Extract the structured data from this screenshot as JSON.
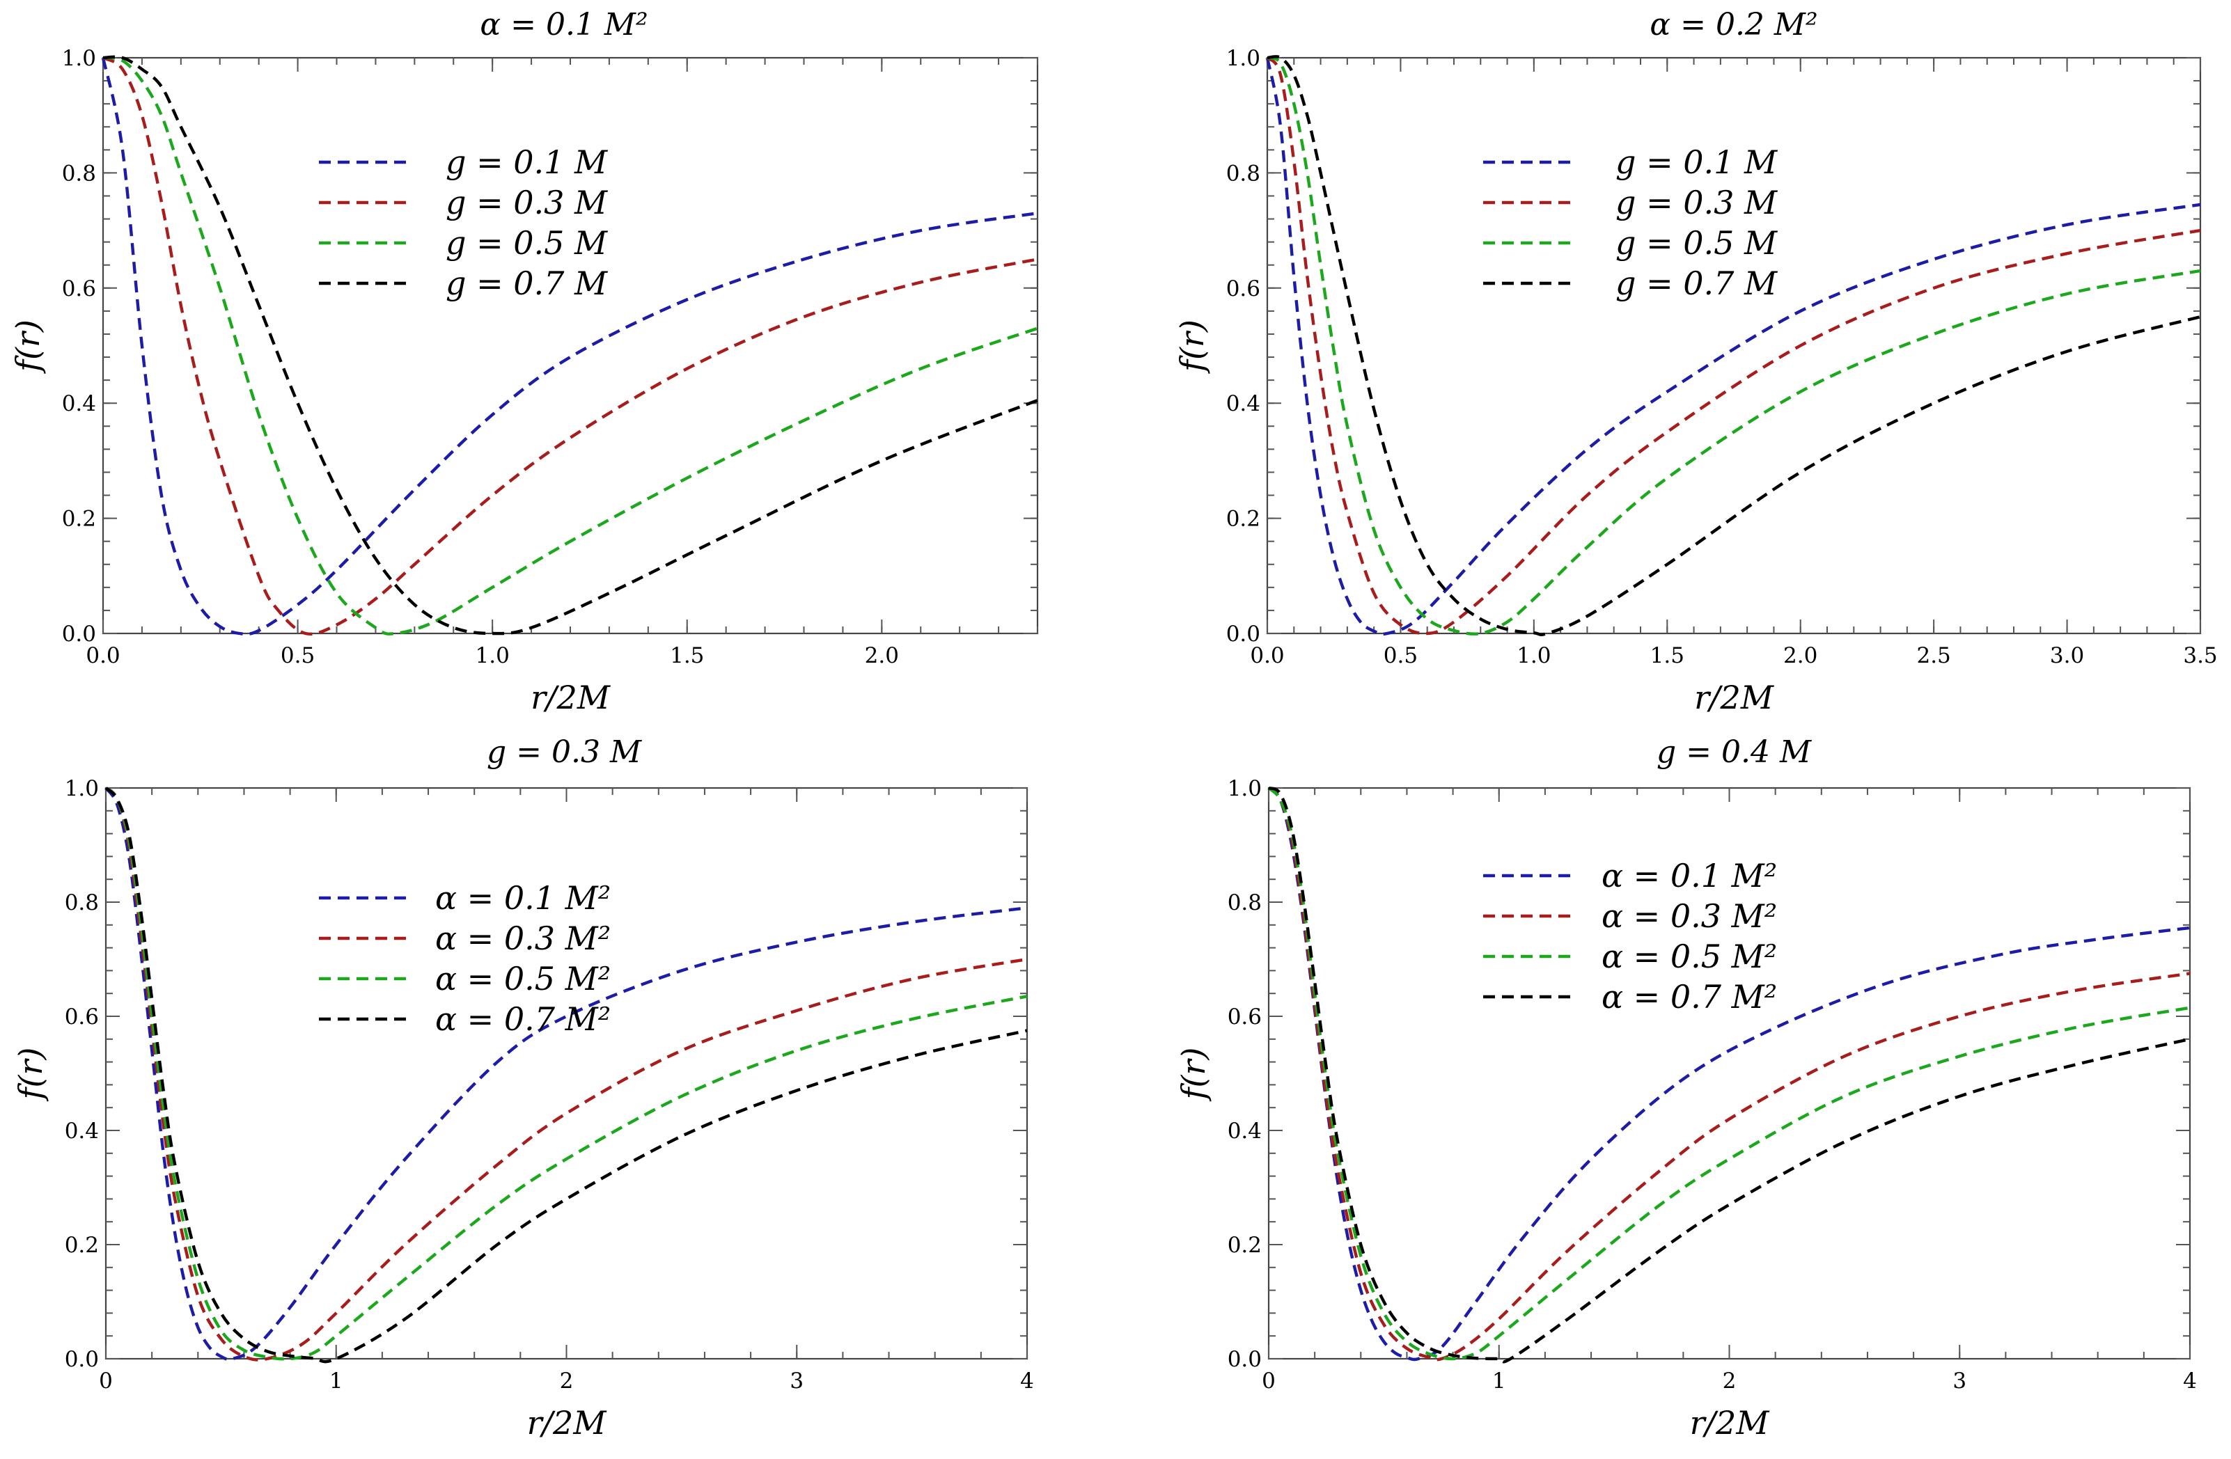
{
  "figure": {
    "xlabel": "r/2M",
    "ylabel": "f(r)"
  },
  "chart_data": [
    {
      "type": "line",
      "title": "α = 0.1 M²",
      "xlabel": "r/2M",
      "ylabel": "f(r)",
      "xlim": [
        0,
        2.4
      ],
      "ylim": [
        0,
        1
      ],
      "xticks": [
        "0.0",
        "0.5",
        "1.0",
        "1.5",
        "2.0"
      ],
      "yticks": [
        "0.0",
        "0.2",
        "0.4",
        "0.6",
        "0.8",
        "1.0"
      ],
      "legend_location": "upper-center",
      "series": [
        {
          "name": "g = 0.1 M",
          "color": "#1c1ca8",
          "x": [
            0,
            0.05,
            0.1,
            0.15,
            0.2,
            0.25,
            0.3,
            0.35,
            0.4,
            0.5,
            0.6,
            0.8,
            1.0,
            1.2,
            1.5,
            1.8,
            2.1,
            2.4
          ],
          "y": [
            1.0,
            0.84,
            0.5,
            0.24,
            0.11,
            0.045,
            0.012,
            0.0,
            0.005,
            0.05,
            0.11,
            0.25,
            0.38,
            0.48,
            0.58,
            0.65,
            0.7,
            0.73
          ]
        },
        {
          "name": "g = 0.3 M",
          "color": "#a81c1c",
          "x": [
            0,
            0.05,
            0.1,
            0.15,
            0.2,
            0.25,
            0.3,
            0.4,
            0.45,
            0.52,
            0.6,
            0.7,
            0.8,
            1.0,
            1.2,
            1.5,
            1.8,
            2.1,
            2.4
          ],
          "y": [
            1.0,
            0.98,
            0.9,
            0.75,
            0.57,
            0.42,
            0.3,
            0.1,
            0.04,
            0.0,
            0.015,
            0.06,
            0.12,
            0.24,
            0.34,
            0.46,
            0.55,
            0.61,
            0.65
          ]
        },
        {
          "name": "g = 0.5 M",
          "color": "#1ca81c",
          "x": [
            0,
            0.05,
            0.1,
            0.15,
            0.2,
            0.3,
            0.4,
            0.5,
            0.6,
            0.7,
            0.75,
            0.85,
            1.0,
            1.2,
            1.5,
            1.8,
            2.1,
            2.4
          ],
          "y": [
            1.0,
            0.995,
            0.96,
            0.9,
            0.8,
            0.6,
            0.38,
            0.2,
            0.07,
            0.01,
            0.0,
            0.02,
            0.08,
            0.16,
            0.27,
            0.37,
            0.46,
            0.53
          ]
        },
        {
          "name": "g = 0.7 M",
          "color": "#000000",
          "x": [
            0,
            0.05,
            0.1,
            0.15,
            0.2,
            0.3,
            0.4,
            0.5,
            0.6,
            0.7,
            0.8,
            0.9,
            1.0,
            1.1,
            1.3,
            1.6,
            2.0,
            2.4
          ],
          "y": [
            1.0,
            1.0,
            0.98,
            0.95,
            0.88,
            0.74,
            0.57,
            0.4,
            0.25,
            0.13,
            0.05,
            0.01,
            0.0,
            0.01,
            0.07,
            0.17,
            0.3,
            0.405
          ]
        }
      ]
    },
    {
      "type": "line",
      "title": "α = 0.2 M²",
      "xlabel": "r/2M",
      "ylabel": "f(r)",
      "xlim": [
        0,
        3.5
      ],
      "ylim": [
        0,
        1
      ],
      "xticks": [
        "0.0",
        "0.5",
        "1.0",
        "1.5",
        "2.0",
        "2.5",
        "3.0",
        "3.5"
      ],
      "yticks": [
        "0.0",
        "0.2",
        "0.4",
        "0.6",
        "0.8",
        "1.0"
      ],
      "legend_location": "upper-center",
      "series": [
        {
          "name": "g  = 0.1 M",
          "color": "#1c1ca8",
          "x": [
            0,
            0.05,
            0.1,
            0.15,
            0.2,
            0.25,
            0.3,
            0.35,
            0.4,
            0.45,
            0.55,
            0.7,
            0.9,
            1.2,
            1.5,
            2.0,
            2.5,
            3.0,
            3.5
          ],
          "y": [
            1.0,
            0.88,
            0.62,
            0.4,
            0.24,
            0.13,
            0.06,
            0.02,
            0.004,
            0.0,
            0.02,
            0.09,
            0.19,
            0.32,
            0.42,
            0.56,
            0.65,
            0.71,
            0.745
          ]
        },
        {
          "name": "g  = 0.3 M",
          "color": "#a81c1c",
          "x": [
            0,
            0.05,
            0.1,
            0.15,
            0.2,
            0.25,
            0.3,
            0.4,
            0.5,
            0.6,
            0.7,
            0.9,
            1.2,
            1.5,
            2.0,
            2.5,
            3.0,
            3.5
          ],
          "y": [
            1.0,
            0.97,
            0.82,
            0.62,
            0.45,
            0.31,
            0.21,
            0.07,
            0.015,
            0.0,
            0.02,
            0.1,
            0.24,
            0.35,
            0.5,
            0.6,
            0.66,
            0.7
          ]
        },
        {
          "name": "g  = 0.5 M",
          "color": "#1ca81c",
          "x": [
            0,
            0.05,
            0.1,
            0.15,
            0.2,
            0.25,
            0.3,
            0.4,
            0.5,
            0.6,
            0.7,
            0.8,
            0.9,
            1.0,
            1.2,
            1.5,
            2.0,
            2.5,
            3.0,
            3.5
          ],
          "y": [
            1.0,
            0.99,
            0.92,
            0.8,
            0.64,
            0.49,
            0.36,
            0.18,
            0.08,
            0.025,
            0.005,
            0.0,
            0.02,
            0.06,
            0.15,
            0.27,
            0.42,
            0.52,
            0.59,
            0.63
          ]
        },
        {
          "name": "g  = 0.7 M",
          "color": "#000000",
          "x": [
            0,
            0.05,
            0.1,
            0.15,
            0.2,
            0.3,
            0.4,
            0.5,
            0.6,
            0.7,
            0.8,
            0.9,
            1.0,
            1.05,
            1.2,
            1.5,
            2.0,
            2.5,
            3.0,
            3.5
          ],
          "y": [
            1.0,
            1.0,
            0.97,
            0.9,
            0.8,
            0.59,
            0.39,
            0.23,
            0.12,
            0.06,
            0.025,
            0.007,
            0.001,
            0.0,
            0.03,
            0.12,
            0.28,
            0.4,
            0.49,
            0.55
          ]
        }
      ]
    },
    {
      "type": "line",
      "title": "g = 0.3 M",
      "xlabel": "r/2M",
      "ylabel": "f(r)",
      "xlim": [
        0,
        4
      ],
      "ylim": [
        0,
        1
      ],
      "xticks": [
        "0",
        "1",
        "2",
        "3",
        "4"
      ],
      "yticks": [
        "0.0",
        "0.2",
        "0.4",
        "0.6",
        "0.8",
        "1.0"
      ],
      "legend_location": "upper-center",
      "series": [
        {
          "name": "α = 0.1 M²",
          "color": "#1c1ca8",
          "x": [
            0,
            0.05,
            0.1,
            0.15,
            0.2,
            0.25,
            0.3,
            0.35,
            0.4,
            0.45,
            0.5,
            0.55,
            0.65,
            0.8,
            1.0,
            1.3,
            1.7,
            2.0,
            2.5,
            3.0,
            3.5,
            4.0
          ],
          "y": [
            1.0,
            0.97,
            0.88,
            0.72,
            0.54,
            0.36,
            0.22,
            0.12,
            0.055,
            0.02,
            0.004,
            0.0,
            0.02,
            0.09,
            0.2,
            0.35,
            0.52,
            0.6,
            0.68,
            0.73,
            0.765,
            0.79
          ]
        },
        {
          "name": "α = 0.3 M²",
          "color": "#a81c1c",
          "x": [
            0,
            0.05,
            0.1,
            0.15,
            0.2,
            0.25,
            0.3,
            0.4,
            0.5,
            0.6,
            0.7,
            0.85,
            1.0,
            1.3,
            1.7,
            2.0,
            2.5,
            3.0,
            3.5,
            4.0
          ],
          "y": [
            1.0,
            0.98,
            0.9,
            0.75,
            0.58,
            0.41,
            0.28,
            0.11,
            0.035,
            0.004,
            0.0,
            0.025,
            0.08,
            0.2,
            0.34,
            0.43,
            0.54,
            0.61,
            0.665,
            0.7
          ]
        },
        {
          "name": "α = 0.5 M²",
          "color": "#1ca81c",
          "x": [
            0,
            0.05,
            0.1,
            0.15,
            0.2,
            0.25,
            0.3,
            0.4,
            0.5,
            0.6,
            0.7,
            0.8,
            0.9,
            1.0,
            1.3,
            1.7,
            2.0,
            2.5,
            3.0,
            3.5,
            4.0
          ],
          "y": [
            1.0,
            0.98,
            0.91,
            0.77,
            0.6,
            0.44,
            0.31,
            0.14,
            0.05,
            0.015,
            0.003,
            0.0,
            0.01,
            0.04,
            0.14,
            0.27,
            0.35,
            0.46,
            0.54,
            0.595,
            0.635
          ]
        },
        {
          "name": "α = 0.7 M²",
          "color": "#000000",
          "x": [
            0,
            0.05,
            0.1,
            0.15,
            0.2,
            0.25,
            0.3,
            0.4,
            0.5,
            0.6,
            0.7,
            0.8,
            0.9,
            1.0,
            1.3,
            1.7,
            2.0,
            2.5,
            3.0,
            3.5,
            4.0
          ],
          "y": [
            1.0,
            0.98,
            0.92,
            0.79,
            0.63,
            0.47,
            0.34,
            0.17,
            0.08,
            0.035,
            0.013,
            0.005,
            0.001,
            0.0,
            0.07,
            0.2,
            0.28,
            0.39,
            0.47,
            0.53,
            0.575
          ]
        }
      ]
    },
    {
      "type": "line",
      "title": "g = 0.4 M",
      "xlabel": "r/2M",
      "ylabel": "f(r)",
      "xlim": [
        0,
        4
      ],
      "ylim": [
        0,
        1
      ],
      "xticks": [
        "0",
        "1",
        "2",
        "3",
        "4"
      ],
      "yticks": [
        "0.0",
        "0.2",
        "0.4",
        "0.6",
        "0.8",
        "1.0"
      ],
      "legend_location": "upper-center",
      "series": [
        {
          "name": "α = 0.1 M²",
          "color": "#1c1ca8",
          "x": [
            0,
            0.05,
            0.1,
            0.15,
            0.2,
            0.25,
            0.3,
            0.35,
            0.4,
            0.45,
            0.5,
            0.55,
            0.6,
            0.65,
            0.75,
            0.9,
            1.1,
            1.4,
            1.8,
            2.2,
            2.7,
            3.2,
            3.6,
            4.0
          ],
          "y": [
            1.0,
            0.98,
            0.9,
            0.77,
            0.61,
            0.45,
            0.31,
            0.2,
            0.12,
            0.065,
            0.03,
            0.01,
            0.002,
            0.0,
            0.02,
            0.1,
            0.21,
            0.35,
            0.49,
            0.58,
            0.66,
            0.71,
            0.735,
            0.755
          ]
        },
        {
          "name": "α = 0.3 M²",
          "color": "#a81c1c",
          "x": [
            0,
            0.05,
            0.1,
            0.15,
            0.2,
            0.25,
            0.3,
            0.4,
            0.5,
            0.6,
            0.7,
            0.75,
            0.85,
            1.0,
            1.3,
            1.7,
            2.0,
            2.5,
            3.0,
            3.5,
            4.0
          ],
          "y": [
            1.0,
            0.98,
            0.91,
            0.78,
            0.62,
            0.46,
            0.33,
            0.15,
            0.06,
            0.018,
            0.002,
            0.0,
            0.02,
            0.07,
            0.19,
            0.33,
            0.42,
            0.53,
            0.6,
            0.645,
            0.675
          ]
        },
        {
          "name": "α = 0.5 M²",
          "color": "#1ca81c",
          "x": [
            0,
            0.05,
            0.1,
            0.15,
            0.2,
            0.25,
            0.3,
            0.4,
            0.5,
            0.6,
            0.7,
            0.8,
            0.9,
            1.0,
            1.3,
            1.7,
            2.0,
            2.5,
            3.0,
            3.5,
            4.0
          ],
          "y": [
            1.0,
            0.98,
            0.92,
            0.8,
            0.64,
            0.49,
            0.36,
            0.18,
            0.08,
            0.03,
            0.008,
            0.0,
            0.01,
            0.04,
            0.14,
            0.27,
            0.35,
            0.46,
            0.53,
            0.58,
            0.615
          ]
        },
        {
          "name": "α = 0.7 M²",
          "color": "#000000",
          "x": [
            0,
            0.05,
            0.1,
            0.15,
            0.2,
            0.25,
            0.3,
            0.4,
            0.5,
            0.6,
            0.7,
            0.8,
            0.9,
            1.0,
            1.05,
            1.3,
            1.7,
            2.0,
            2.5,
            3.0,
            3.5,
            4.0
          ],
          "y": [
            1.0,
            0.99,
            0.93,
            0.81,
            0.66,
            0.51,
            0.38,
            0.2,
            0.1,
            0.045,
            0.018,
            0.006,
            0.001,
            0.0,
            0.0,
            0.07,
            0.19,
            0.27,
            0.38,
            0.46,
            0.515,
            0.56
          ]
        }
      ]
    }
  ]
}
